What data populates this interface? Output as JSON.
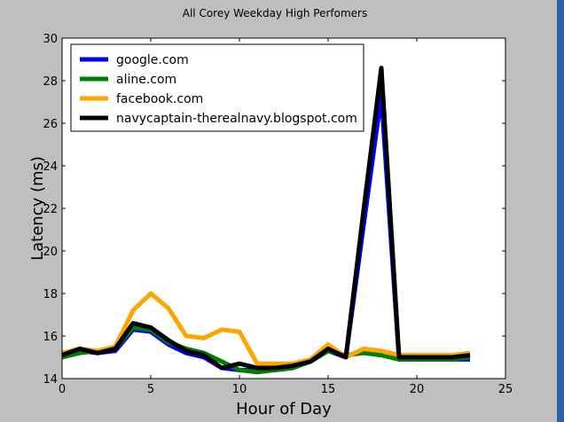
{
  "chart_data": {
    "type": "line",
    "title": "All Corey Weekday High Perfomers",
    "xlabel": "Hour of Day",
    "ylabel": "Latency (ms)",
    "xlim": [
      0,
      25
    ],
    "ylim": [
      14,
      30
    ],
    "xticks": [
      0,
      5,
      10,
      15,
      20,
      25
    ],
    "yticks": [
      14,
      16,
      18,
      20,
      22,
      24,
      26,
      28,
      30
    ],
    "grid": false,
    "legend_position": "top-left",
    "x": [
      0,
      1,
      2,
      3,
      4,
      5,
      6,
      7,
      8,
      9,
      10,
      11,
      12,
      13,
      14,
      15,
      16,
      17,
      18,
      19,
      20,
      21,
      22,
      23
    ],
    "series": [
      {
        "name": "google.com",
        "color": "#0000ff",
        "values": [
          15.0,
          15.3,
          15.2,
          15.3,
          16.3,
          16.2,
          15.6,
          15.2,
          15.0,
          14.5,
          14.4,
          14.4,
          14.4,
          14.5,
          14.8,
          15.3,
          15.0,
          21.2,
          27.3,
          14.9,
          14.9,
          14.9,
          14.9,
          14.9
        ]
      },
      {
        "name": "aline.com",
        "color": "#008000",
        "values": [
          15.0,
          15.2,
          15.3,
          15.4,
          16.4,
          16.3,
          15.7,
          15.4,
          15.2,
          14.8,
          14.4,
          14.3,
          14.4,
          14.5,
          14.8,
          15.3,
          15.1,
          15.2,
          15.1,
          14.9,
          14.9,
          14.9,
          14.9,
          15.0
        ]
      },
      {
        "name": "facebook.com",
        "color": "#ffa500",
        "values": [
          15.2,
          15.4,
          15.3,
          15.5,
          17.2,
          18.0,
          17.3,
          16.0,
          15.9,
          16.3,
          16.2,
          14.7,
          14.7,
          14.7,
          14.9,
          15.6,
          15.0,
          15.4,
          15.3,
          15.1,
          15.1,
          15.1,
          15.1,
          15.2
        ]
      },
      {
        "name": "navycaptain-therealnavy.blogspot.com",
        "color": "#000000",
        "values": [
          15.1,
          15.4,
          15.2,
          15.4,
          16.6,
          16.4,
          15.8,
          15.3,
          15.1,
          14.5,
          14.7,
          14.5,
          14.5,
          14.6,
          14.8,
          15.4,
          15.0,
          21.9,
          28.6,
          15.0,
          15.0,
          15.0,
          15.0,
          15.1
        ]
      }
    ]
  }
}
